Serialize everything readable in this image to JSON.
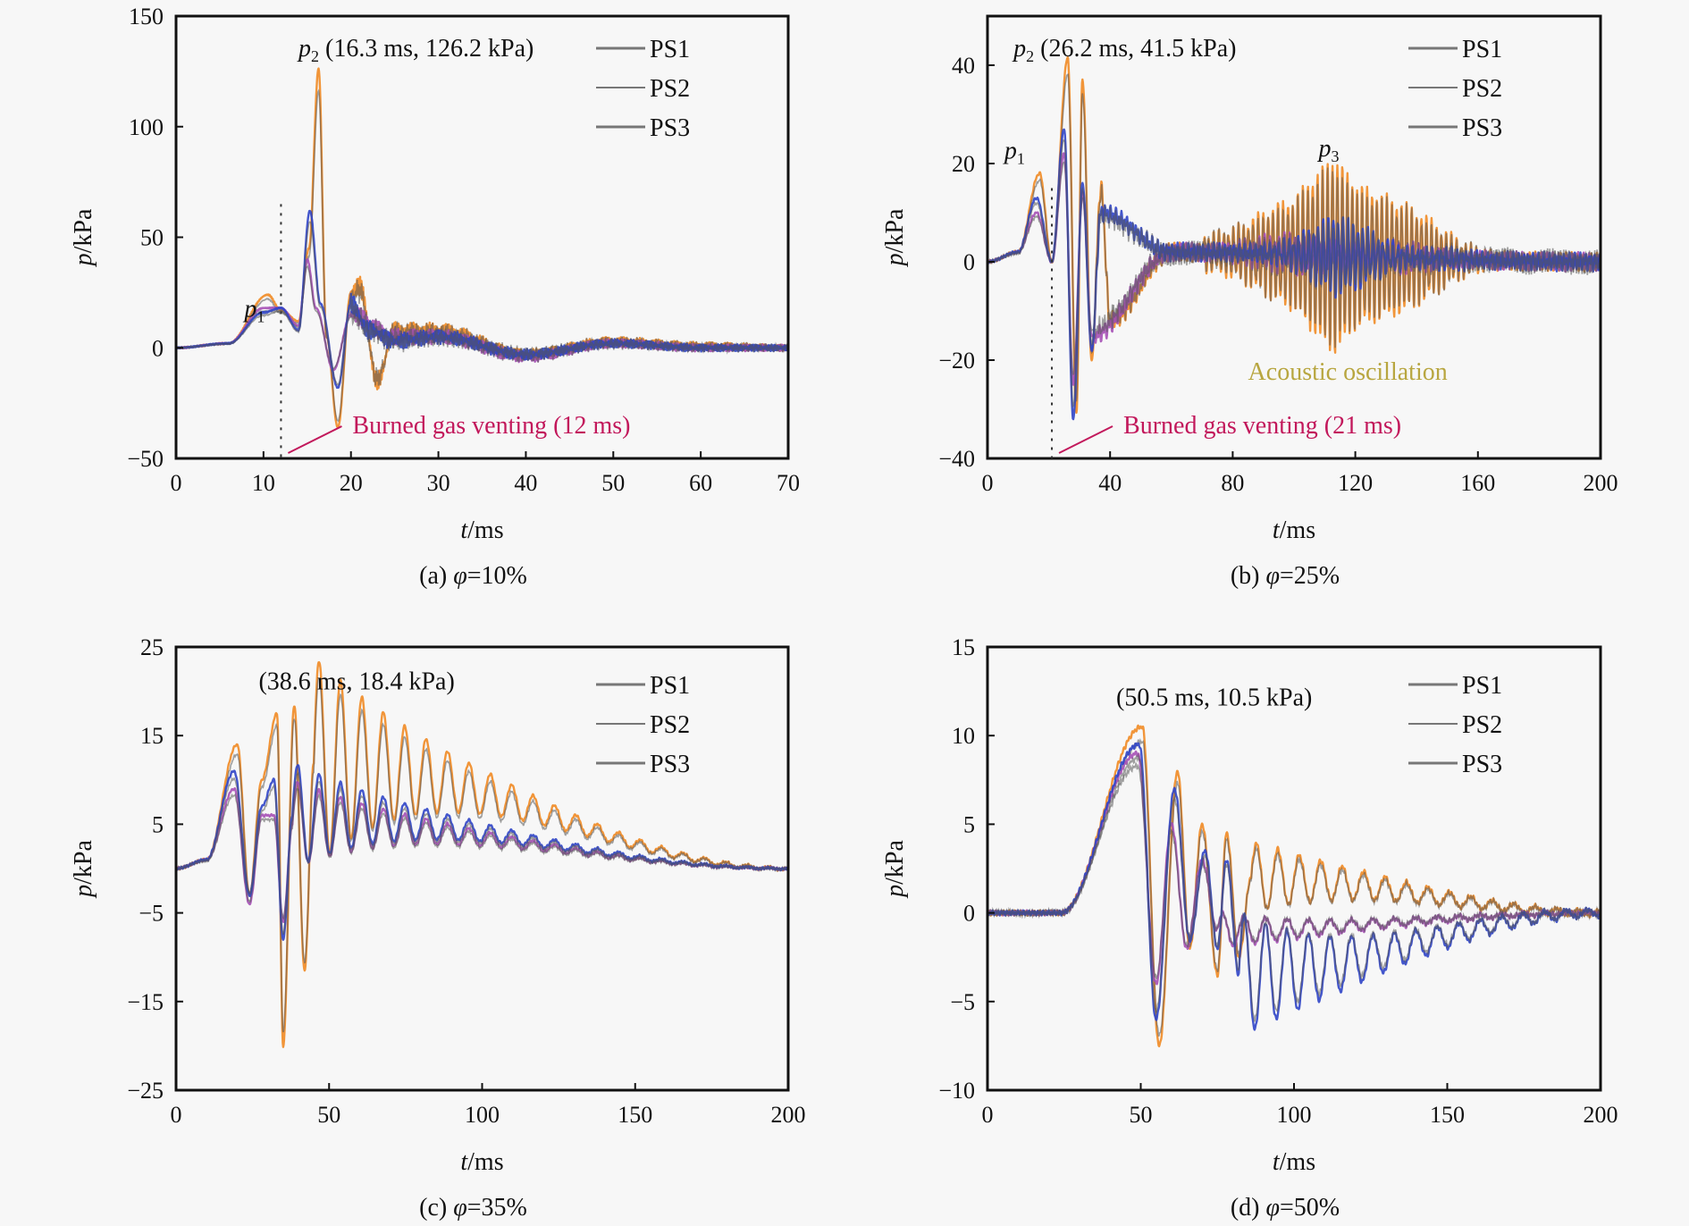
{
  "figure": {
    "legend_entries": [
      "PS1",
      "PS2",
      "PS3"
    ],
    "series_colors": {
      "PS1": "#f08a24",
      "PS2": "#2f44c6",
      "PS3": "#a54fb5",
      "overlay": "#555555"
    },
    "legend_line_color": "#777777"
  },
  "chart_data": [
    {
      "id": "a",
      "type": "line",
      "caption": "(a) φ=10%",
      "xlabel": "t/ms",
      "ylabel": "p/kPa",
      "xlim": [
        0,
        70
      ],
      "ylim": [
        -50,
        150
      ],
      "xticks": [
        0,
        10,
        20,
        30,
        40,
        50,
        60,
        70
      ],
      "yticks": [
        -50,
        0,
        50,
        100,
        150
      ],
      "legend": "top-right",
      "annotations": [
        {
          "text": "p2 (16.3 ms, 126.2 kPa)",
          "x": 16.3,
          "y": 126.2
        },
        {
          "text": "p1",
          "x": 10.5,
          "y": 24
        },
        {
          "text": "Burned gas venting (12 ms)",
          "x": 12,
          "color": "#c2185b",
          "marker": "dotted-vertical-line"
        }
      ],
      "series": [
        {
          "name": "PS1",
          "key_points": [
            [
              0,
              0
            ],
            [
              6,
              2
            ],
            [
              10.5,
              24
            ],
            [
              12,
              17
            ],
            [
              14,
              12
            ],
            [
              15.2,
              45
            ],
            [
              16.3,
              126.2
            ],
            [
              17.2,
              5
            ],
            [
              18.5,
              -36
            ],
            [
              20,
              25
            ],
            [
              21,
              28
            ],
            [
              23,
              -15
            ],
            [
              25,
              8
            ],
            [
              30,
              8
            ],
            [
              40,
              -3
            ],
            [
              50,
              3
            ],
            [
              60,
              1
            ],
            [
              70,
              0
            ]
          ]
        },
        {
          "name": "PS2",
          "key_points": [
            [
              0,
              0
            ],
            [
              6,
              2
            ],
            [
              10,
              16
            ],
            [
              12,
              18
            ],
            [
              14,
              8
            ],
            [
              15.3,
              62
            ],
            [
              16.5,
              20
            ],
            [
              18.5,
              -18
            ],
            [
              20,
              20
            ],
            [
              22,
              8
            ],
            [
              25,
              3
            ],
            [
              30,
              5
            ],
            [
              40,
              -3
            ],
            [
              50,
              2
            ],
            [
              60,
              0
            ],
            [
              70,
              0
            ]
          ]
        },
        {
          "name": "PS3",
          "key_points": [
            [
              0,
              0
            ],
            [
              6,
              2
            ],
            [
              10,
              18
            ],
            [
              12,
              18
            ],
            [
              14,
              10
            ],
            [
              15,
              40
            ],
            [
              16,
              18
            ],
            [
              18,
              -10
            ],
            [
              20,
              15
            ],
            [
              25,
              5
            ],
            [
              30,
              5
            ],
            [
              40,
              -4
            ],
            [
              50,
              2
            ],
            [
              60,
              0
            ],
            [
              70,
              0
            ]
          ]
        }
      ]
    },
    {
      "id": "b",
      "type": "line",
      "caption": "(b)  φ=25%",
      "xlabel": "t/ms",
      "ylabel": "p/kPa",
      "xlim": [
        0,
        200
      ],
      "ylim": [
        -40,
        50
      ],
      "xticks": [
        0,
        40,
        80,
        120,
        160,
        200
      ],
      "yticks": [
        -40,
        -20,
        0,
        20,
        40
      ],
      "legend": "top-right",
      "annotations": [
        {
          "text": "p2 (26.2 ms, 41.5 kPa)",
          "x": 26.2,
          "y": 41.5
        },
        {
          "text": "p1",
          "x": 16,
          "y": 18
        },
        {
          "text": "p3",
          "x": 113,
          "y": 20
        },
        {
          "text": "Acoustic oscillation",
          "color": "#b8a640"
        },
        {
          "text": "Burned gas venting (21 ms)",
          "x": 21,
          "color": "#c2185b",
          "marker": "dotted-vertical-line"
        }
      ],
      "series": [
        {
          "name": "PS1",
          "key_points": [
            [
              0,
              0
            ],
            [
              10,
              2
            ],
            [
              17,
              18
            ],
            [
              21,
              0
            ],
            [
              26.2,
              41.5
            ],
            [
              29,
              -31
            ],
            [
              31,
              37
            ],
            [
              34,
              -20
            ],
            [
              37,
              15
            ],
            [
              40,
              -12
            ],
            [
              60,
              2
            ],
            [
              200,
              0
            ]
          ],
          "oscillation_envelope": [
            [
              70,
              3
            ],
            [
              100,
              10
            ],
            [
              113,
              20
            ],
            [
              120,
              15
            ],
            [
              150,
              5
            ],
            [
              170,
              0
            ]
          ]
        },
        {
          "name": "PS2",
          "key_points": [
            [
              0,
              0
            ],
            [
              10,
              2
            ],
            [
              16,
              13
            ],
            [
              21,
              0
            ],
            [
              25,
              27
            ],
            [
              28,
              -32
            ],
            [
              31,
              16
            ],
            [
              34,
              -18
            ],
            [
              37,
              10
            ],
            [
              60,
              2
            ],
            [
              200,
              0
            ]
          ],
          "oscillation_envelope": [
            [
              90,
              1
            ],
            [
              113,
              7
            ],
            [
              130,
              3
            ],
            [
              160,
              0
            ]
          ]
        },
        {
          "name": "PS3",
          "key_points": [
            [
              0,
              0
            ],
            [
              10,
              2
            ],
            [
              16,
              10
            ],
            [
              21,
              0
            ],
            [
              25,
              22
            ],
            [
              28,
              -25
            ],
            [
              31,
              14
            ],
            [
              34,
              -15
            ],
            [
              60,
              2
            ],
            [
              200,
              0
            ]
          ],
          "oscillation_envelope": [
            [
              80,
              2
            ],
            [
              115,
              3
            ],
            [
              160,
              0
            ]
          ]
        }
      ]
    },
    {
      "id": "c",
      "type": "line",
      "caption": "(c)  φ=35%",
      "xlabel": "t/ms",
      "ylabel": "p/kPa",
      "xlim": [
        0,
        200
      ],
      "ylim": [
        -25,
        25
      ],
      "xticks": [
        0,
        50,
        100,
        150,
        200
      ],
      "yticks": [
        -25,
        -15,
        -5,
        5,
        15,
        25
      ],
      "legend": "top-right",
      "annotations": [
        {
          "text": "(38.6 ms, 18.4 kPa)",
          "x": 38.6,
          "y": 18.4
        }
      ],
      "series": [
        {
          "name": "PS1",
          "key_points": [
            [
              0,
              0
            ],
            [
              10,
              1
            ],
            [
              20,
              14
            ],
            [
              24,
              -3
            ],
            [
              28,
              10
            ],
            [
              33,
              17.5
            ],
            [
              35,
              -20
            ],
            [
              38.6,
              18.4
            ],
            [
              42,
              -11.5
            ],
            [
              45,
              12
            ],
            [
              200,
              0
            ]
          ],
          "oscillation_period_ms": 7,
          "decay_ms": 35
        },
        {
          "name": "PS2",
          "key_points": [
            [
              0,
              0
            ],
            [
              10,
              1
            ],
            [
              19,
              11
            ],
            [
              24,
              -3
            ],
            [
              28,
              7
            ],
            [
              32,
              10
            ],
            [
              35,
              -8
            ],
            [
              38,
              6
            ],
            [
              200,
              0
            ]
          ],
          "oscillation_period_ms": 7,
          "decay_ms": 35
        },
        {
          "name": "PS3",
          "key_points": [
            [
              0,
              0
            ],
            [
              10,
              1
            ],
            [
              19,
              9
            ],
            [
              24,
              -4
            ],
            [
              28,
              6
            ],
            [
              32,
              6
            ],
            [
              35,
              -6
            ],
            [
              38,
              5
            ],
            [
              200,
              0
            ]
          ],
          "oscillation_period_ms": 7,
          "decay_ms": 35
        }
      ]
    },
    {
      "id": "d",
      "type": "line",
      "caption": "(d) φ=50%",
      "xlabel": "t/ms",
      "ylabel": "p/kPa",
      "xlim": [
        0,
        200
      ],
      "ylim": [
        -10,
        15
      ],
      "xticks": [
        0,
        50,
        100,
        150,
        200
      ],
      "yticks": [
        -10,
        -5,
        0,
        5,
        10,
        15
      ],
      "legend": "top-right",
      "annotations": [
        {
          "text": "(50.5 ms, 10.5 kPa)",
          "x": 50.5,
          "y": 10.5
        }
      ],
      "series": [
        {
          "name": "PS1",
          "key_points": [
            [
              0,
              0
            ],
            [
              24,
              0
            ],
            [
              50.5,
              10.5
            ],
            [
              56,
              -7.5
            ],
            [
              62,
              8
            ],
            [
              66,
              -2
            ],
            [
              70,
              5
            ],
            [
              75,
              -3.5
            ],
            [
              78,
              4.5
            ],
            [
              82,
              -2.5
            ],
            [
              86,
              2
            ],
            [
              200,
              0
            ]
          ],
          "oscillation_period_ms": 7,
          "decay_ms": 40
        },
        {
          "name": "PS2",
          "key_points": [
            [
              0,
              0
            ],
            [
              24,
              0
            ],
            [
              49.5,
              9.5
            ],
            [
              55,
              -6
            ],
            [
              61,
              7
            ],
            [
              66,
              -1.5
            ],
            [
              71,
              3.5
            ],
            [
              75,
              -2
            ],
            [
              78,
              3
            ],
            [
              82,
              -3.5
            ],
            [
              200,
              0
            ]
          ],
          "oscillation_period_ms": 7,
          "decay_ms": 40
        },
        {
          "name": "PS3",
          "key_points": [
            [
              0,
              0
            ],
            [
              24,
              0
            ],
            [
              49,
              9
            ],
            [
              55,
              -4
            ],
            [
              60,
              5
            ],
            [
              65,
              -2
            ],
            [
              70,
              3
            ],
            [
              75,
              -1
            ],
            [
              200,
              0
            ]
          ],
          "oscillation_period_ms": 7,
          "decay_ms": 40
        }
      ]
    }
  ]
}
